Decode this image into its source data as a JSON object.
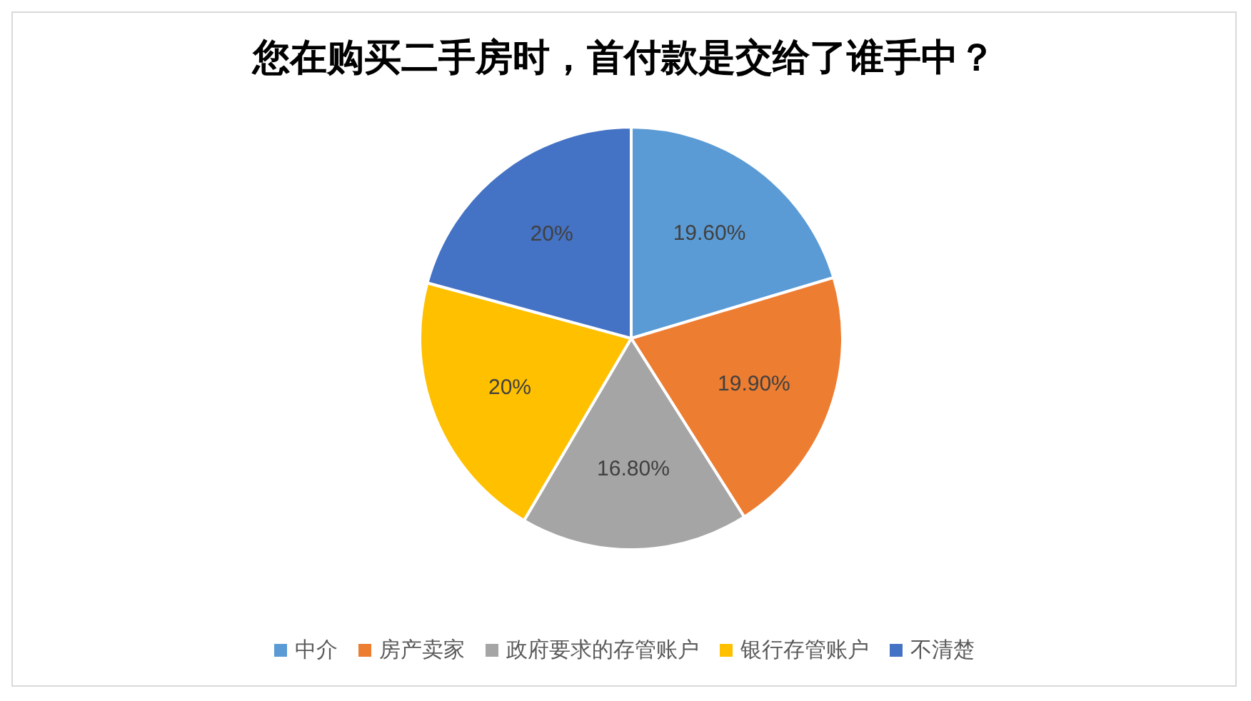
{
  "chart_data": {
    "type": "pie",
    "title": "您在购买二手房时，首付款是交给了谁手中？",
    "categories": [
      "中介",
      "房产卖家",
      "政府要求的存管账户",
      "银行存管账户",
      "不清楚"
    ],
    "values": [
      19.6,
      19.9,
      16.8,
      20,
      20
    ],
    "value_labels": [
      "19.60%",
      "19.90%",
      "16.80%",
      "20%",
      "20%"
    ],
    "colors": [
      "#5b9bd5",
      "#ed7d31",
      "#a5a5a5",
      "#ffc000",
      "#4472c4"
    ],
    "legend": "bottom"
  }
}
